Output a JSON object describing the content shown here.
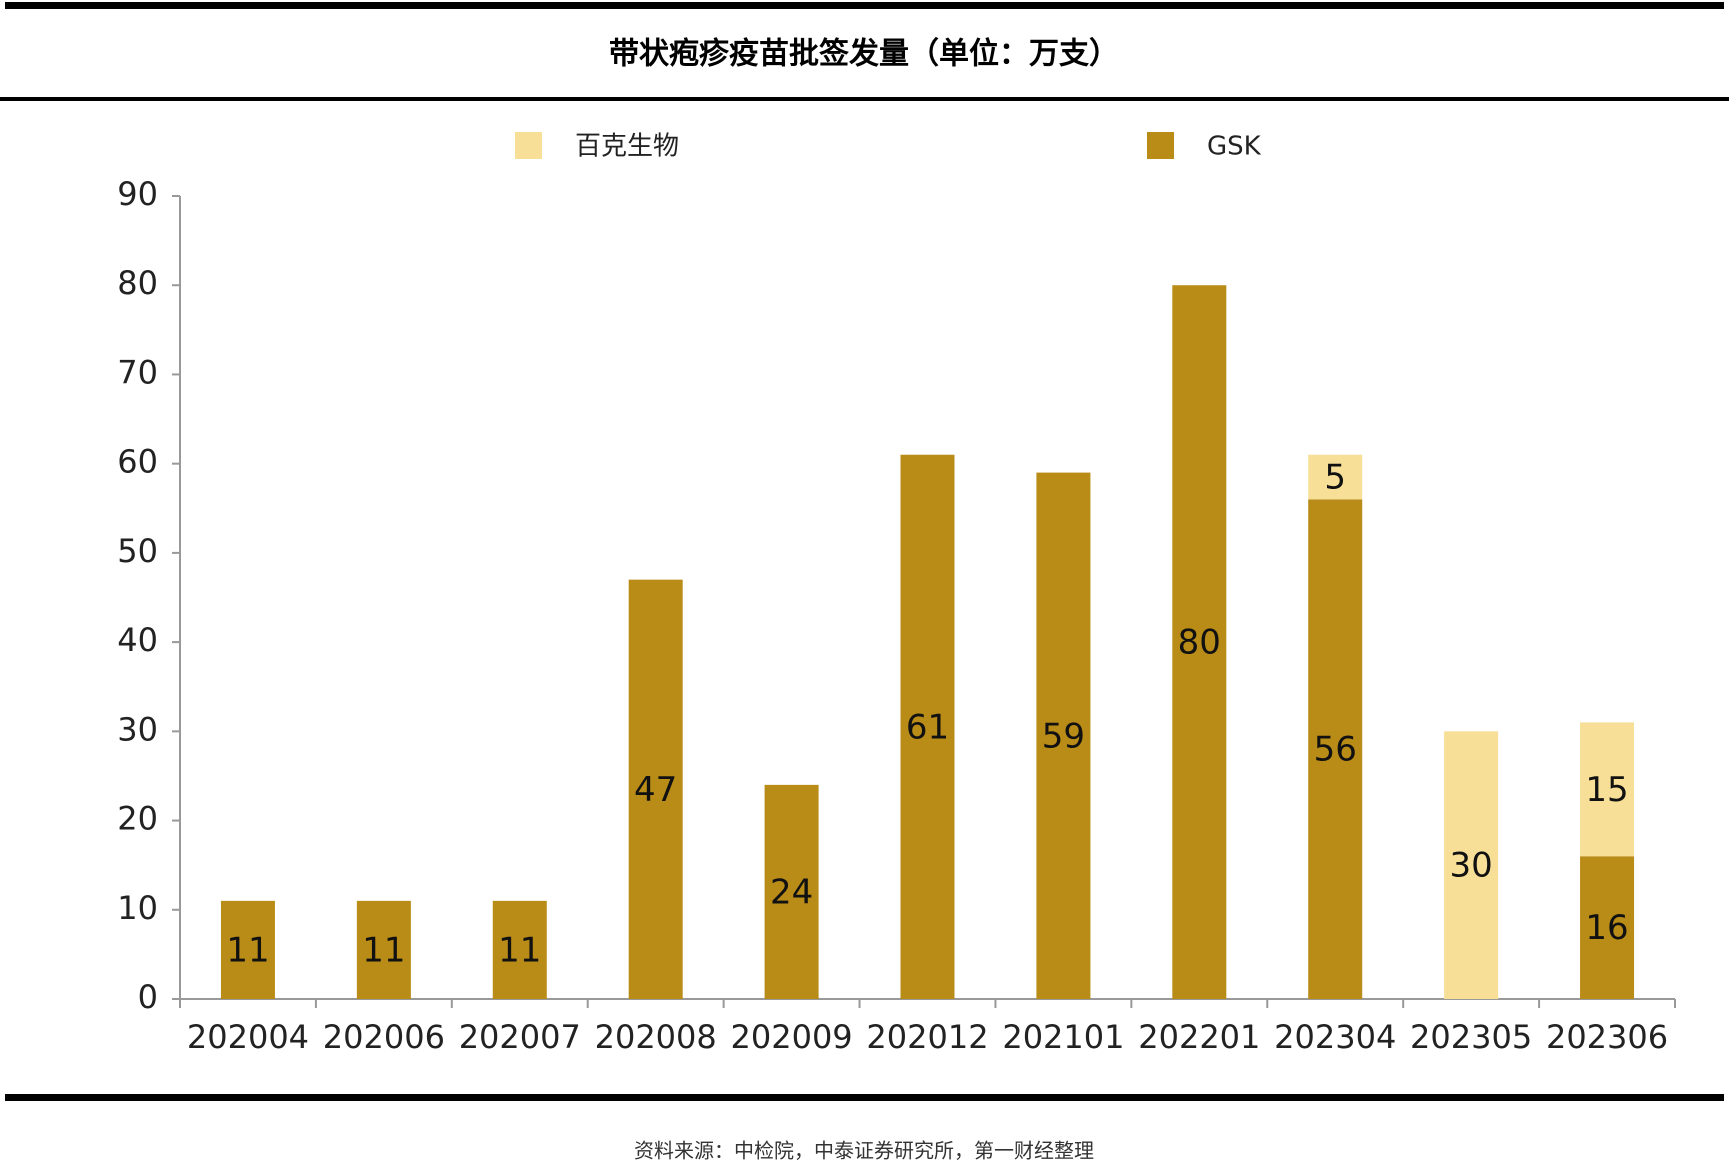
{
  "chart_data": {
    "type": "stacked_bar",
    "title": "带状疱疹疫苗批签发量（单位：万支）",
    "categories": [
      "202004",
      "202006",
      "202007",
      "202008",
      "202009",
      "202012",
      "202101",
      "202201",
      "202304",
      "202305",
      "202306"
    ],
    "series": [
      {
        "name": "百克生物",
        "color": "#f7df97",
        "values": [
          null,
          null,
          null,
          null,
          null,
          null,
          null,
          null,
          5,
          30,
          15
        ]
      },
      {
        "name": "GSK",
        "color": "#b98b17",
        "values": [
          11,
          11,
          11,
          47,
          24,
          61,
          59,
          80,
          56,
          null,
          16
        ]
      }
    ],
    "ylim": [
      0,
      90
    ],
    "yticks": [
      0,
      10,
      20,
      30,
      40,
      50,
      60,
      70,
      80,
      90
    ],
    "grid": false,
    "legend": "top",
    "source": "资料来源：中检院，中泰证券研究所，第一财经整理"
  }
}
